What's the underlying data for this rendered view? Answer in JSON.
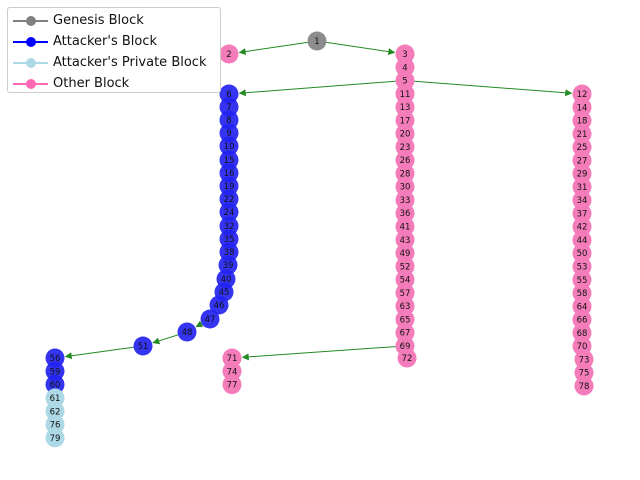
{
  "legend": [
    {
      "label": "Genesis Block",
      "color": "#808080"
    },
    {
      "label": "Attacker's Block",
      "color": "#0000ff"
    },
    {
      "label": "Attacker's Private Block",
      "color": "#add8e6"
    },
    {
      "label": "Other Block",
      "color": "#ff69b4"
    }
  ],
  "colors": {
    "genesis": "#8c8c8c",
    "attacker": "#2323f0",
    "private": "#add8e6",
    "other": "#f57cba",
    "edge": "#228b22"
  },
  "columns": {
    "genesis": [
      "1"
    ],
    "left_other": [
      "2"
    ],
    "attacker_main": [
      "6",
      "7",
      "8",
      "9",
      "10",
      "15",
      "16",
      "19",
      "22",
      "24",
      "32",
      "35",
      "38",
      "39",
      "40",
      "45",
      "46",
      "47",
      "48",
      "51"
    ],
    "attacker_fork": [
      "56",
      "59",
      "60"
    ],
    "private": [
      "61",
      "62",
      "76",
      "79"
    ],
    "middle": [
      "3",
      "4",
      "5",
      "11",
      "13",
      "17",
      "20",
      "23",
      "26",
      "28",
      "30",
      "33",
      "36",
      "41",
      "43",
      "49",
      "52",
      "54",
      "57",
      "63",
      "65",
      "67",
      "69",
      "72"
    ],
    "lower_fork": [
      "71",
      "74",
      "77"
    ],
    "right": [
      "12",
      "14",
      "18",
      "21",
      "25",
      "27",
      "29",
      "31",
      "34",
      "37",
      "42",
      "44",
      "50",
      "53",
      "55",
      "58",
      "64",
      "66",
      "68",
      "70",
      "73",
      "75",
      "78"
    ]
  },
  "edges": [
    [
      "1",
      "2"
    ],
    [
      "1",
      "3"
    ],
    [
      "5",
      "6"
    ],
    [
      "5",
      "12"
    ],
    [
      "69",
      "71"
    ],
    [
      "51",
      "56"
    ],
    [
      "47",
      "48"
    ],
    [
      "48",
      "51"
    ]
  ]
}
